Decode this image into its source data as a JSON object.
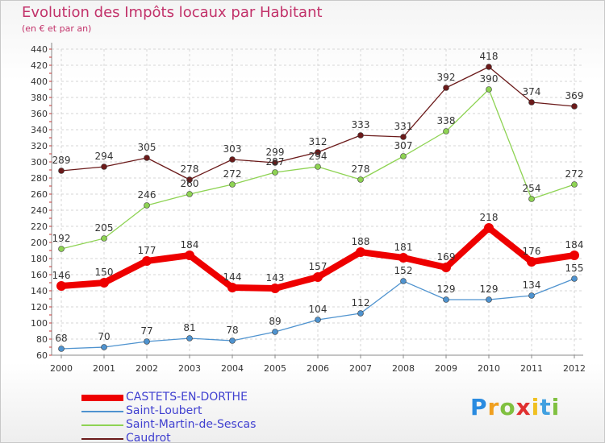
{
  "chart_data": {
    "type": "line",
    "title": "Evolution des Impôts locaux par Habitant",
    "subtitle": "(en € et par an)",
    "x": [
      "2000",
      "2001",
      "2002",
      "2003",
      "2004",
      "2005",
      "2006",
      "2007",
      "2008",
      "2009",
      "2010",
      "2011",
      "2012"
    ],
    "ylim": [
      60,
      440
    ],
    "yticks": [
      60,
      80,
      100,
      120,
      140,
      160,
      180,
      200,
      220,
      240,
      260,
      280,
      300,
      320,
      340,
      360,
      380,
      400,
      420,
      440
    ],
    "grid": true,
    "legend_position": "bottom-left",
    "series": [
      {
        "name": "CASTETS-EN-DORTHE",
        "color": "#ee0000",
        "values": [
          146,
          150,
          177,
          184,
          144,
          143,
          157,
          188,
          181,
          169,
          218,
          176,
          184
        ]
      },
      {
        "name": "Saint-Loubert",
        "color": "#4f93cf",
        "values": [
          68,
          70,
          77,
          81,
          78,
          89,
          104,
          112,
          152,
          129,
          129,
          134,
          155
        ]
      },
      {
        "name": "Saint-Martin-de-Sescas",
        "color": "#8ed353",
        "values": [
          192,
          205,
          246,
          260,
          272,
          287,
          294,
          278,
          307,
          338,
          390,
          254,
          272
        ]
      },
      {
        "name": "Caudrot",
        "color": "#6b1a1a",
        "values": [
          289,
          294,
          305,
          278,
          303,
          299,
          312,
          333,
          331,
          392,
          418,
          374,
          369
        ]
      }
    ]
  },
  "brand": {
    "letters": [
      "P",
      "r",
      "o",
      "x",
      "i",
      "t",
      "i"
    ],
    "colors": [
      "#2a8be0",
      "#f0a020",
      "#80c040",
      "#e03030",
      "#f0c020",
      "#40a0e0",
      "#80c040"
    ]
  }
}
